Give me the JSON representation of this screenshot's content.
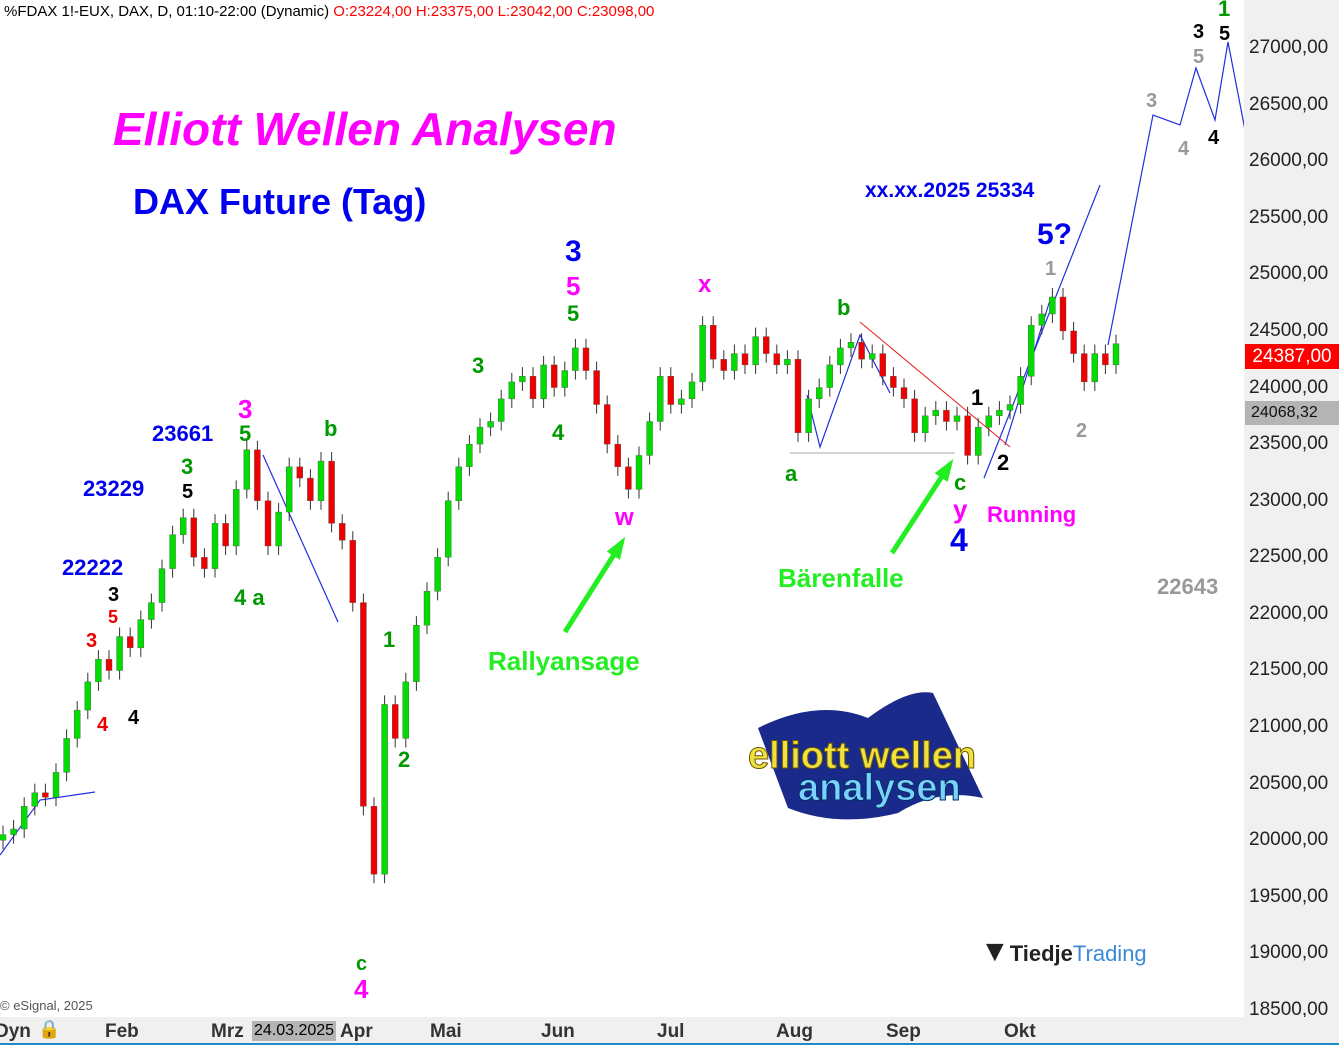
{
  "header": {
    "symbol": "%FDAX 1!-EUX, DAX, D, 01:10-22:00 (Dynamic)",
    "ohlc": "O:23224,00 H:23375,00 L:23042,00 C:23098,00"
  },
  "title": "Elliott Wellen Analysen",
  "subtitle": "DAX Future (Tag)",
  "copyright": "© eSignal, 2025",
  "colors": {
    "up": "#00dd00",
    "down": "#ee0000",
    "magenta": "#ff00ff",
    "blue": "#0000ee",
    "green": "#009900",
    "lime": "#22ee22",
    "grey": "#999999",
    "price_tag": "#ff0000"
  },
  "logos": {
    "elliott": "elliott wellen analysen",
    "tiedje_a": "Tiedje",
    "tiedje_b": "Trading"
  },
  "chart_data": {
    "type": "candlestick",
    "ylim": [
      18500,
      27000
    ],
    "yticks": [
      "27000,00",
      "26500,00",
      "26000,00",
      "25500,00",
      "25000,00",
      "24500,00",
      "24000,00",
      "23500,00",
      "23000,00",
      "22500,00",
      "22000,00",
      "21500,00",
      "21000,00",
      "20500,00",
      "20000,00",
      "19500,00",
      "19000,00",
      "18500,00"
    ],
    "xticks": [
      "Dyn",
      "Feb",
      "Mrz",
      "Apr",
      "Mai",
      "Jun",
      "Jul",
      "Aug",
      "Sep",
      "Okt"
    ],
    "cursor_date": "24.03.2025",
    "last_price": "24387,00",
    "ref_price": "24068,32",
    "closes": [
      20050,
      20100,
      20300,
      20420,
      20380,
      20600,
      20900,
      21150,
      21400,
      21600,
      21500,
      21800,
      21700,
      21950,
      22100,
      22400,
      22700,
      22850,
      22500,
      22400,
      22800,
      22600,
      23100,
      23450,
      23000,
      22600,
      22900,
      23300,
      23200,
      23000,
      23350,
      22800,
      22650,
      22100,
      20300,
      19700,
      21200,
      20900,
      21400,
      21900,
      22200,
      22500,
      23000,
      23300,
      23500,
      23650,
      23700,
      23900,
      24050,
      24100,
      23900,
      24200,
      24000,
      24150,
      24350,
      24150,
      23850,
      23500,
      23300,
      23100,
      23400,
      23700,
      24100,
      23850,
      23900,
      24050,
      24550,
      24250,
      24150,
      24300,
      24200,
      24450,
      24300,
      24200,
      24250,
      23600,
      23900,
      24000,
      24200,
      24350,
      24400,
      24250,
      24300,
      24100,
      24000,
      23900,
      23600,
      23750,
      23800,
      23700,
      23750,
      23400,
      23650,
      23750,
      23800,
      23850,
      24100,
      24550,
      24650,
      24800,
      24500,
      24300,
      24050,
      24300,
      24200,
      24387
    ],
    "annotations": [
      {
        "text": "23661",
        "color": "#0000ee"
      },
      {
        "text": "23229",
        "color": "#0000ee"
      },
      {
        "text": "22222",
        "color": "#0000ee"
      },
      {
        "text": "3",
        "color": "#ff00ff"
      },
      {
        "text": "5",
        "color": "#009900"
      },
      {
        "text": "b",
        "color": "#009900"
      },
      {
        "text": "3",
        "color": "#009900"
      },
      {
        "text": "5",
        "color": "#000000"
      },
      {
        "text": "3",
        "color": "#000000"
      },
      {
        "text": "5",
        "color": "#ee0000"
      },
      {
        "text": "3",
        "color": "#ee0000"
      },
      {
        "text": "4",
        "color": "#ee0000"
      },
      {
        "text": "4",
        "color": "#000000"
      },
      {
        "text": "4 a",
        "color": "#009900"
      },
      {
        "text": "1",
        "color": "#009900"
      },
      {
        "text": "2",
        "color": "#009900"
      },
      {
        "text": "c",
        "color": "#009900"
      },
      {
        "text": "4",
        "color": "#ff00ff"
      },
      {
        "text": "3",
        "color": "#009900"
      },
      {
        "text": "4",
        "color": "#009900"
      },
      {
        "text": "3",
        "color": "#0000ee"
      },
      {
        "text": "5",
        "color": "#ff00ff"
      },
      {
        "text": "5",
        "color": "#009900"
      },
      {
        "text": "x",
        "color": "#ff00ff"
      },
      {
        "text": "w",
        "color": "#ff00ff"
      },
      {
        "text": "Rallyansage",
        "color": "#22ee22"
      },
      {
        "text": "b",
        "color": "#009900"
      },
      {
        "text": "a",
        "color": "#009900"
      },
      {
        "text": "1",
        "color": "#000000"
      },
      {
        "text": "2",
        "color": "#000000"
      },
      {
        "text": "c",
        "color": "#009900"
      },
      {
        "text": "y",
        "color": "#ff00ff"
      },
      {
        "text": "4",
        "color": "#0000ee"
      },
      {
        "text": "Running",
        "color": "#ff00ff"
      },
      {
        "text": "Bärenfalle",
        "color": "#22ee22"
      },
      {
        "text": "xx.xx.2025 25334",
        "color": "#0000ee"
      },
      {
        "text": "5?",
        "color": "#0000ee"
      },
      {
        "text": "1",
        "color": "#999999"
      },
      {
        "text": "2",
        "color": "#999999"
      },
      {
        "text": "22643",
        "color": "#999999"
      },
      {
        "text": "3",
        "color": "#999999"
      },
      {
        "text": "4",
        "color": "#999999"
      },
      {
        "text": "5",
        "color": "#999999"
      },
      {
        "text": "3",
        "color": "#000000"
      },
      {
        "text": "4",
        "color": "#000000"
      },
      {
        "text": "1",
        "color": "#009900"
      },
      {
        "text": "5",
        "color": "#000000"
      }
    ]
  }
}
